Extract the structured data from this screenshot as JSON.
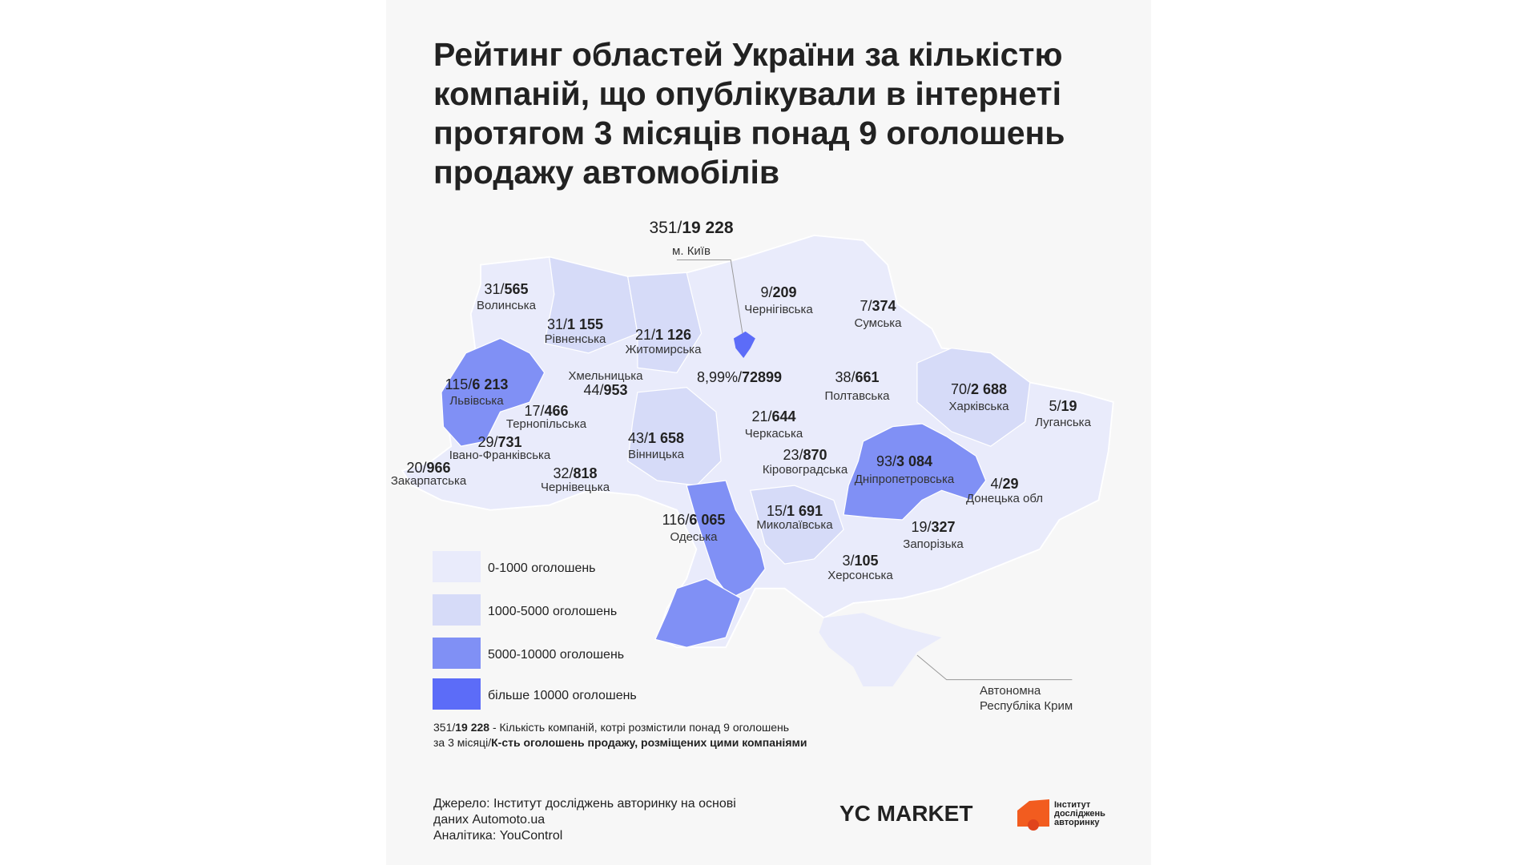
{
  "title_lines": [
    "Рейтинг областей України за кількістю",
    "компаній, що опублікували в інтернеті",
    "протягом 3 місяців понад 9 оголошень",
    "продажу автомобілів"
  ],
  "regions": [
    {
      "count": "351/",
      "ads": "19 228",
      "name": "м. Київ"
    },
    {
      "count": "31/",
      "ads": "565",
      "name": "Волинська"
    },
    {
      "count": "31/",
      "ads": "1 155",
      "name": "Рівненська"
    },
    {
      "count": "21/",
      "ads": "1 126",
      "name": "Житомирська"
    },
    {
      "count": "9/",
      "ads": "209",
      "name": "Чернігівська"
    },
    {
      "count": "7/",
      "ads": "374",
      "name": "Сумська"
    },
    {
      "count": "44/",
      "ads": "953",
      "name": "Хмельницька"
    },
    {
      "count": "115/",
      "ads": "6 213",
      "name": "Львівська"
    },
    {
      "count": "17/",
      "ads": "466",
      "name": "Тернопільська"
    },
    {
      "count": "8,99%/",
      "ads": "72899"
    },
    {
      "count": "38/",
      "ads": "661",
      "name": "Полтавська"
    },
    {
      "count": "70/",
      "ads": "2 688",
      "name": "Харківська"
    },
    {
      "count": "5/",
      "ads": "19",
      "name": "Луганська"
    },
    {
      "count": "21/",
      "ads": "644",
      "name": "Черкаська"
    },
    {
      "count": "43/",
      "ads": "1 658",
      "name": "Вінницька"
    },
    {
      "count": "29/",
      "ads": "731",
      "name": "Івано-Франківська"
    },
    {
      "count": "23/",
      "ads": "870",
      "name": "Кіровоградська"
    },
    {
      "count": "93/",
      "ads": "3 084",
      "name": "Дніпропетровська"
    },
    {
      "count": "20/",
      "ads": "966",
      "name": "Закарпатська"
    },
    {
      "count": "32/",
      "ads": "818",
      "name": "Чернівецька"
    },
    {
      "count": "4/",
      "ads": "29",
      "name": "Донецька обл"
    },
    {
      "count": "116/",
      "ads": "6 065",
      "name": "Одеська"
    },
    {
      "count": "15/",
      "ads": "1 691",
      "name": "Миколаївська"
    },
    {
      "count": "19/",
      "ads": "327",
      "name": "Запорізька"
    },
    {
      "count": "3/",
      "ads": "105",
      "name": "Херсонська"
    }
  ],
  "crimea_lines": [
    "Автономна",
    "Республіка Крим"
  ],
  "legend": [
    {
      "label": "0-1000 оголошень",
      "color": "#e9ebfb"
    },
    {
      "label": "1000-5000 оголошень",
      "color": "#d6dbf8"
    },
    {
      "label": "5000-10000 оголошень",
      "color": "#8090f5"
    },
    {
      "label": "більше 10000  оголошень",
      "color": "#5c6cf8"
    }
  ],
  "footnote": [
    [
      {
        "text": "351/"
      },
      {
        "text": "19 228",
        "bold": true
      },
      {
        "text": " - Кількість компаній, котрі розмістили понад 9 оголошень"
      }
    ],
    [
      {
        "text": "за 3 місяці/"
      },
      {
        "text": "К-сть оголошень продажу, розміщених цими компаніями",
        "bold": true
      }
    ]
  ],
  "source_lines": [
    "Джерело: Інститут досліджень авторинку на основі",
    "даних Automoto.ua",
    "Аналітика: YouControl"
  ],
  "logo_yc": "YC MARKET",
  "logo_institute_lines": [
    "Інститут",
    "досліджень",
    "авторинку"
  ]
}
